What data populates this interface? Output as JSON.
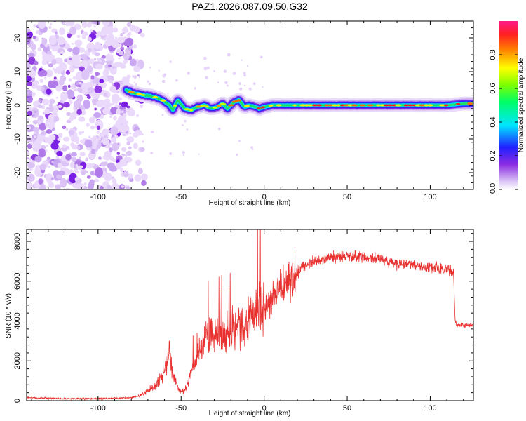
{
  "title": "PAZ1.2026.087.09.50.G32",
  "chart_data": [
    {
      "type": "heatmap",
      "xlabel": "Height of straight line (km)",
      "ylabel": "Frequency (Hz)",
      "xlim": [
        -143,
        126
      ],
      "ylim": [
        -25,
        25
      ],
      "x_ticks": [
        -100,
        -50,
        0,
        50,
        100
      ],
      "y_ticks": [
        -20,
        -10,
        0,
        10,
        20
      ],
      "colorbar": {
        "label": "Normalized spectral amplitude",
        "range": [
          0,
          1
        ],
        "ticks": [
          0.0,
          0.2,
          0.4,
          0.6,
          0.8
        ],
        "tick_labels": [
          "0.0",
          "0.2",
          "0.4",
          "0.6",
          "0.8"
        ]
      },
      "frequency_trace": {
        "x": [
          -83,
          -78,
          -72,
          -66,
          -61,
          -57,
          -55,
          -52,
          -48,
          -44,
          -40,
          -36,
          -32,
          -28,
          -25,
          -22,
          -18,
          -15,
          -12,
          -9,
          -6,
          -3,
          0,
          5,
          10,
          20,
          30,
          40,
          50,
          60,
          70,
          80,
          90,
          100,
          110,
          120,
          126
        ],
        "y": [
          4.5,
          3.5,
          3.0,
          2.5,
          1.5,
          0.0,
          -1.5,
          1.5,
          -1.0,
          -1.5,
          -0.5,
          0.0,
          -1.0,
          -0.5,
          0.5,
          -1.0,
          1.0,
          1.5,
          -0.5,
          0.0,
          -0.5,
          -1.0,
          -0.5,
          0.0,
          0.0,
          0.0,
          0.0,
          0.0,
          0.0,
          0.0,
          0.0,
          0.0,
          0.0,
          0.0,
          0.0,
          0.5,
          0.5
        ]
      },
      "noise_region_x": [
        -143,
        -80
      ]
    },
    {
      "type": "line",
      "xlabel": "Height of straight line (km)",
      "ylabel": "SNR (10 * v/v)",
      "xlim": [
        -143,
        126
      ],
      "ylim": [
        0,
        8600
      ],
      "x_ticks": [
        -100,
        -50,
        0,
        50,
        100
      ],
      "y_ticks": [
        0,
        2000,
        4000,
        6000,
        8000
      ],
      "color": "#e8302f",
      "series": [
        {
          "name": "SNR",
          "x": [
            -143,
            -120,
            -100,
            -90,
            -80,
            -75,
            -70,
            -65,
            -60,
            -57,
            -55,
            -52,
            -50,
            -47,
            -45,
            -42,
            -40,
            -37,
            -35,
            -32,
            -30,
            -27,
            -25,
            -22,
            -20,
            -17,
            -15,
            -12,
            -10,
            -7,
            -5,
            0,
            5,
            10,
            15,
            20,
            25,
            30,
            40,
            50,
            60,
            70,
            75,
            80,
            90,
            100,
            110,
            114,
            115,
            116,
            120,
            126
          ],
          "y": [
            150,
            100,
            100,
            120,
            150,
            250,
            500,
            800,
            1500,
            2500,
            1200,
            700,
            400,
            600,
            1200,
            1800,
            2200,
            2800,
            3200,
            3600,
            3400,
            3200,
            3100,
            3300,
            3500,
            3700,
            3800,
            3400,
            4000,
            4200,
            4400,
            4700,
            5100,
            5600,
            6000,
            6400,
            6800,
            7000,
            7200,
            7300,
            7200,
            7100,
            7000,
            6900,
            6800,
            6700,
            6600,
            6500,
            4000,
            3800,
            3800,
            3800
          ]
        }
      ]
    }
  ]
}
